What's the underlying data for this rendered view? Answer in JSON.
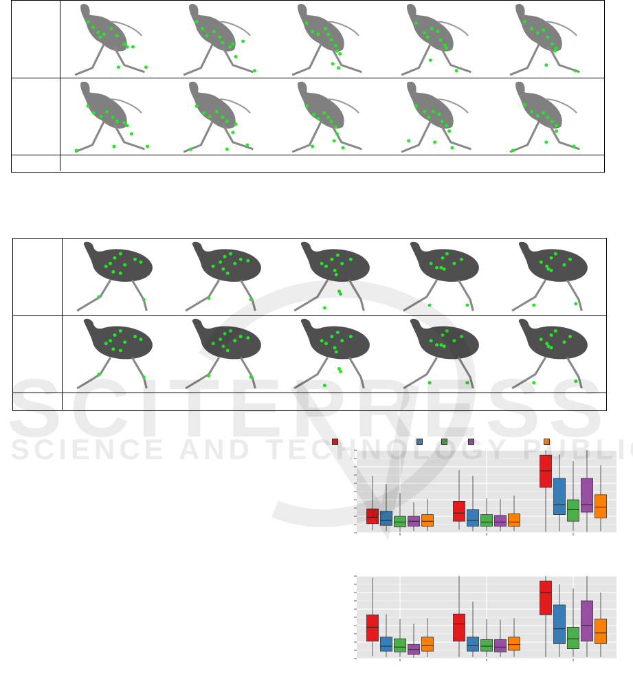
{
  "watermark": {
    "brand": "SCITEPRESS",
    "tagline": "SCIENCE AND TECHNOLOGY PUBLICATIONS"
  },
  "figure_top": {
    "row_labels": [
      "",
      "",
      ""
    ],
    "frame_count": 5
  },
  "figure_bottom": {
    "row_labels": [
      "",
      "",
      ""
    ],
    "frame_count": 5
  },
  "colors": {
    "keypoint": "#22e822",
    "series": [
      "#e41a1c",
      "#377eb8",
      "#4daf4a",
      "#984ea3",
      "#ff7f00"
    ],
    "panel_bg": "#e5e5e5"
  },
  "legend": {
    "entries": [
      {
        "label": "",
        "color": "#e41a1c"
      },
      {
        "label": "",
        "color": "#377eb8"
      },
      {
        "label": "",
        "color": "#4daf4a"
      },
      {
        "label": "",
        "color": "#984ea3"
      },
      {
        "label": "",
        "color": "#ff7f00"
      }
    ]
  },
  "chart_data": [
    {
      "type": "box",
      "groups": 3,
      "ylim": [
        0,
        10
      ],
      "series_colors": [
        "#e41a1c",
        "#377eb8",
        "#4daf4a",
        "#984ea3",
        "#ff7f00"
      ],
      "boxes": [
        [
          {
            "min": 0.3,
            "q1": 1.1,
            "median": 1.9,
            "q3": 2.9,
            "max": 6.9
          },
          {
            "min": 0.2,
            "q1": 0.9,
            "median": 1.5,
            "q3": 2.6,
            "max": 5.9
          },
          {
            "min": 0.1,
            "q1": 0.7,
            "median": 1.3,
            "q3": 2.0,
            "max": 4.8
          },
          {
            "min": 0.2,
            "q1": 0.8,
            "median": 1.4,
            "q3": 2.0,
            "max": 3.7
          },
          {
            "min": 0.2,
            "q1": 0.8,
            "median": 1.4,
            "q3": 2.2,
            "max": 4.1
          }
        ],
        [
          {
            "min": 0.4,
            "q1": 1.4,
            "median": 2.4,
            "q3": 3.8,
            "max": 7.6
          },
          {
            "min": 0.2,
            "q1": 0.8,
            "median": 1.5,
            "q3": 2.8,
            "max": 6.9
          },
          {
            "min": 0.2,
            "q1": 0.8,
            "median": 1.3,
            "q3": 2.2,
            "max": 4.2
          },
          {
            "min": 0.2,
            "q1": 0.8,
            "median": 1.3,
            "q3": 2.1,
            "max": 4.1
          },
          {
            "min": 0.2,
            "q1": 0.8,
            "median": 1.3,
            "q3": 2.3,
            "max": 4.5
          }
        ],
        [
          {
            "min": 0.1,
            "q1": 5.5,
            "median": 7.5,
            "q3": 9.4,
            "max": 10.0
          },
          {
            "min": 0.2,
            "q1": 2.2,
            "median": 3.4,
            "q3": 6.6,
            "max": 9.5
          },
          {
            "min": 0.2,
            "q1": 1.4,
            "median": 2.8,
            "q3": 4.0,
            "max": 8.7
          },
          {
            "min": 0.1,
            "q1": 2.5,
            "median": 3.4,
            "q3": 6.6,
            "max": 10.0
          },
          {
            "min": 0.2,
            "q1": 1.8,
            "median": 3.1,
            "q3": 4.6,
            "max": 8.2
          }
        ]
      ]
    },
    {
      "type": "box",
      "groups": 3,
      "ylim": [
        0,
        10
      ],
      "series_colors": [
        "#e41a1c",
        "#377eb8",
        "#4daf4a",
        "#984ea3",
        "#ff7f00"
      ],
      "boxes": [
        [
          {
            "min": 0.3,
            "q1": 2.1,
            "median": 3.8,
            "q3": 5.3,
            "max": 9.8
          },
          {
            "min": 0.2,
            "q1": 0.9,
            "median": 1.5,
            "q3": 2.6,
            "max": 5.4
          },
          {
            "min": 0.2,
            "q1": 0.8,
            "median": 1.4,
            "q3": 2.4,
            "max": 4.8
          },
          {
            "min": 0.1,
            "q1": 0.5,
            "median": 1.1,
            "q3": 1.7,
            "max": 4.2
          },
          {
            "min": 0.2,
            "q1": 0.9,
            "median": 1.6,
            "q3": 2.6,
            "max": 4.9
          }
        ],
        [
          {
            "min": 0.2,
            "q1": 2.1,
            "median": 4.2,
            "q3": 5.4,
            "max": 10.0
          },
          {
            "min": 0.2,
            "q1": 0.9,
            "median": 1.6,
            "q3": 2.6,
            "max": 6.9
          },
          {
            "min": 0.2,
            "q1": 0.9,
            "median": 1.5,
            "q3": 2.3,
            "max": 4.8
          },
          {
            "min": 0.2,
            "q1": 0.8,
            "median": 1.4,
            "q3": 2.3,
            "max": 4.7
          },
          {
            "min": 0.2,
            "q1": 1.0,
            "median": 1.7,
            "q3": 2.6,
            "max": 4.9
          }
        ],
        [
          {
            "min": 0.2,
            "q1": 5.3,
            "median": 8.0,
            "q3": 9.4,
            "max": 10.0
          },
          {
            "min": 0.2,
            "q1": 1.8,
            "median": 3.6,
            "q3": 6.5,
            "max": 9.0
          },
          {
            "min": 0.2,
            "q1": 1.2,
            "median": 2.4,
            "q3": 3.8,
            "max": 8.5
          },
          {
            "min": 0.2,
            "q1": 2.1,
            "median": 4.0,
            "q3": 7.0,
            "max": 10.0
          },
          {
            "min": 0.2,
            "q1": 1.8,
            "median": 3.1,
            "q3": 4.8,
            "max": 8.0
          }
        ]
      ]
    }
  ]
}
